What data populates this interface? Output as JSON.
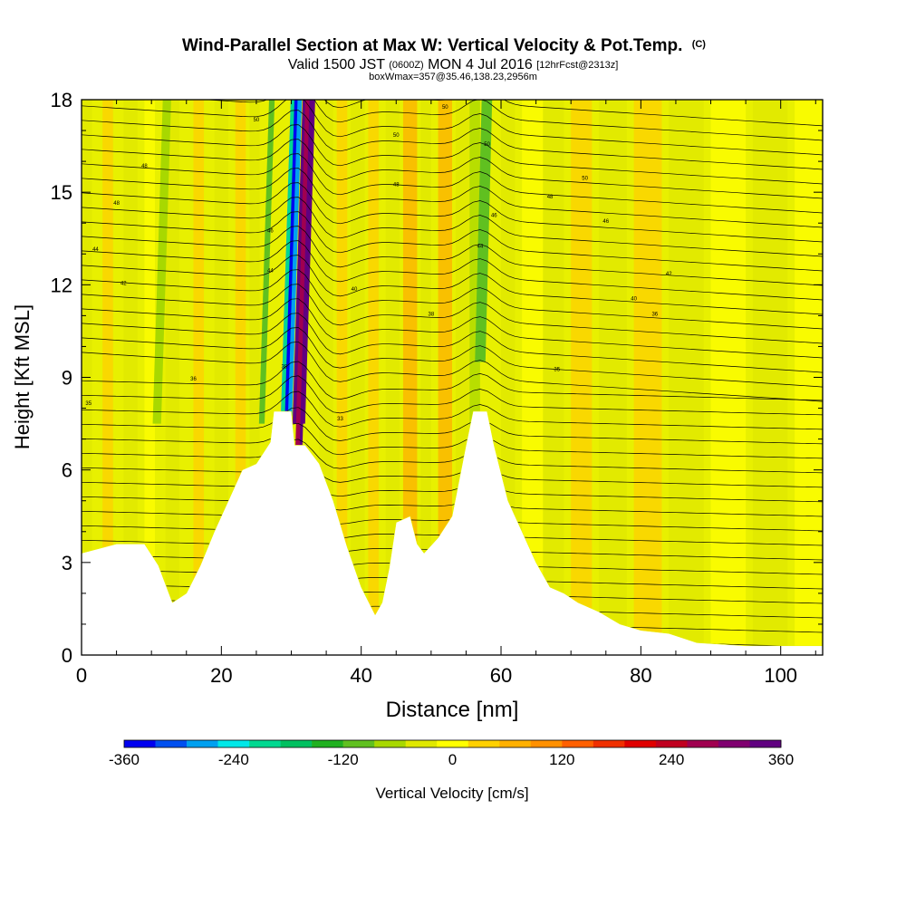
{
  "chart_data": {
    "type": "heatmap",
    "title": "Wind-Parallel Section at Max W: Vertical Velocity & Pot.Temp.",
    "title_suffix": "(C)",
    "subtitle": {
      "valid": "Valid 1500 JST",
      "utc": "(0600Z)",
      "date": "MON 4 Jul 2016",
      "fcst": "[12hrFcst@2313z]"
    },
    "box_info": "boxWmax=357@35.46,138.23,2956m",
    "xlabel": "Distance [nm]",
    "ylabel": "Height [Kft MSL]",
    "xlim": [
      0,
      106
    ],
    "ylim": [
      0,
      18
    ],
    "x_ticks": [
      0,
      20,
      40,
      60,
      80,
      100
    ],
    "y_ticks": [
      0,
      3,
      6,
      9,
      12,
      15,
      18
    ],
    "colorbar": {
      "label": "Vertical Velocity [cm/s]",
      "ticks": [
        -360,
        -240,
        -120,
        0,
        120,
        240,
        360
      ],
      "range": [
        -360,
        360
      ],
      "colors": [
        "#0000f0",
        "#0050f0",
        "#00a0f0",
        "#00e8e8",
        "#00d890",
        "#00c060",
        "#20b020",
        "#60c020",
        "#a8d800",
        "#e0e800",
        "#ffff00",
        "#ffd000",
        "#ffb000",
        "#ff9000",
        "#ff6000",
        "#f03000",
        "#e00000",
        "#c00020",
        "#a00050",
        "#800070",
        "#600080"
      ]
    },
    "vertical_velocity_bands": [
      {
        "x_center": 30,
        "x_width": 1.6,
        "w": -300,
        "note": "downdraft"
      },
      {
        "x_center": 31.8,
        "x_width": 1.8,
        "w": 357,
        "note": "max updraft"
      },
      {
        "x_center": 57.5,
        "x_width": 1.5,
        "w": -120
      },
      {
        "x_center": 26.5,
        "x_width": 0.8,
        "w": -100
      },
      {
        "x_center": 11.5,
        "x_width": 1.2,
        "w": -60
      }
    ],
    "terrain_kft": [
      [
        0,
        3.3
      ],
      [
        5,
        3.6
      ],
      [
        9,
        3.6
      ],
      [
        11,
        2.9
      ],
      [
        13,
        1.7
      ],
      [
        15,
        2.0
      ],
      [
        17,
        2.9
      ],
      [
        19,
        4.0
      ],
      [
        21,
        5.0
      ],
      [
        23,
        6.0
      ],
      [
        25,
        6.2
      ],
      [
        27,
        6.9
      ],
      [
        27.5,
        7.9
      ],
      [
        30,
        7.9
      ],
      [
        30.5,
        6.8
      ],
      [
        32,
        6.8
      ],
      [
        34,
        6.2
      ],
      [
        36,
        5.0
      ],
      [
        38,
        3.5
      ],
      [
        40,
        2.2
      ],
      [
        42,
        1.3
      ],
      [
        43,
        1.7
      ],
      [
        44,
        2.8
      ],
      [
        45,
        4.3
      ],
      [
        47,
        4.5
      ],
      [
        48,
        3.6
      ],
      [
        49,
        3.3
      ],
      [
        51,
        3.8
      ],
      [
        53,
        4.5
      ],
      [
        55,
        6.8
      ],
      [
        56,
        7.9
      ],
      [
        58,
        7.9
      ],
      [
        59,
        6.8
      ],
      [
        61,
        5.0
      ],
      [
        63,
        4.0
      ],
      [
        65,
        3.0
      ],
      [
        67,
        2.2
      ],
      [
        69,
        2.0
      ],
      [
        71,
        1.7
      ],
      [
        74,
        1.4
      ],
      [
        77,
        1.0
      ],
      [
        80,
        0.8
      ],
      [
        84,
        0.7
      ],
      [
        88,
        0.4
      ],
      [
        95,
        0.3
      ],
      [
        106,
        0.3
      ]
    ],
    "theta_contour_labels": [
      "50",
      "50",
      "50",
      "50",
      "50",
      "48",
      "48",
      "48",
      "48",
      "46",
      "46",
      "46",
      "44",
      "44",
      "44",
      "42",
      "42",
      "40",
      "40",
      "38",
      "38",
      "36",
      "36",
      "35",
      "35",
      "33"
    ]
  }
}
